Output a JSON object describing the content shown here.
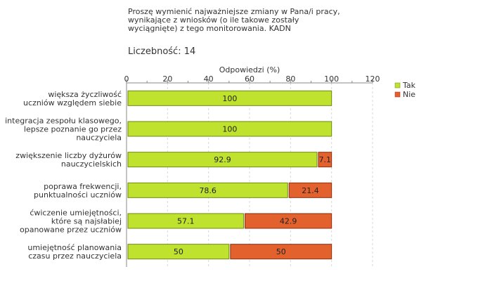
{
  "header": {
    "title_lines": [
      "Proszę wymienić najważniejsze zmiany w Pana/i pracy,",
      "wynikające z wniosków (o ile takowe zostały",
      "wyciągnięte) z tego monitorowania. KADN"
    ],
    "count_label": "Liczebność:",
    "count_value": "14"
  },
  "chart_data": {
    "type": "bar",
    "orientation": "horizontal",
    "stacked": true,
    "xlabel": "Odpowiedzi (%)",
    "xlim": [
      0,
      120
    ],
    "xticks": [
      0,
      20,
      40,
      60,
      80,
      100,
      120
    ],
    "grid": true,
    "legend_position": "right",
    "categories": [
      [
        "większa życzliwość",
        "uczniów względem siebie"
      ],
      [
        "integracja zespołu klasowego,",
        "lepsze poznanie go przez",
        "nauczyciela"
      ],
      [
        "zwiększenie liczby dyżurów",
        "nauczycielskich"
      ],
      [
        "poprawa frekwencji,",
        "punktualności uczniów"
      ],
      [
        "ćwiczenie umiejętności,",
        "które są najsłabiej",
        "opanowane przez uczniów"
      ],
      [
        "umiejętność planowania",
        "czasu przez nauczyciela"
      ]
    ],
    "series": [
      {
        "name": "Tak",
        "color": "#bfe22f",
        "stroke": "#6f8a12",
        "values": [
          100,
          100,
          92.9,
          78.6,
          57.1,
          50
        ],
        "labels": [
          "100",
          "100",
          "92.9",
          "78.6",
          "57.1",
          "50"
        ]
      },
      {
        "name": "Nie",
        "color": "#e2612d",
        "stroke": "#8a3010",
        "values": [
          0,
          0,
          7.1,
          21.4,
          42.9,
          50
        ],
        "labels": [
          "",
          "",
          "7.1",
          "21.4",
          "42.9",
          "50"
        ]
      }
    ]
  }
}
